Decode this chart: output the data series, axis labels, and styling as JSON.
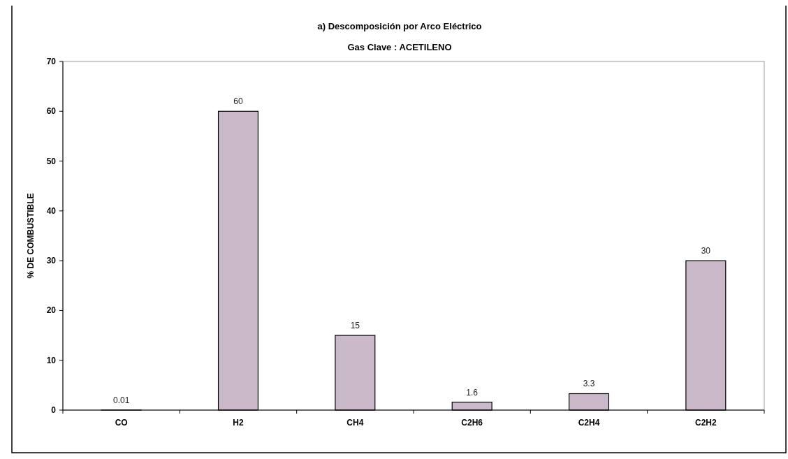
{
  "chart_data": {
    "type": "bar",
    "title": "a) Descomposición por Arco Eléctrico",
    "subtitle": "Gas Clave : ACETILENO",
    "ylabel": "% DE COMBUSTIBLE",
    "categories": [
      "CO",
      "H2",
      "CH4",
      "C2H6",
      "C2H4",
      "C2H2"
    ],
    "values": [
      0.01,
      60,
      15,
      1.6,
      3.3,
      30
    ],
    "color": "#c9b9c9",
    "ylim": [
      0,
      70
    ],
    "yticks": [
      0,
      10,
      20,
      30,
      40,
      50,
      60,
      70
    ],
    "data_labels": true,
    "grid": false
  }
}
